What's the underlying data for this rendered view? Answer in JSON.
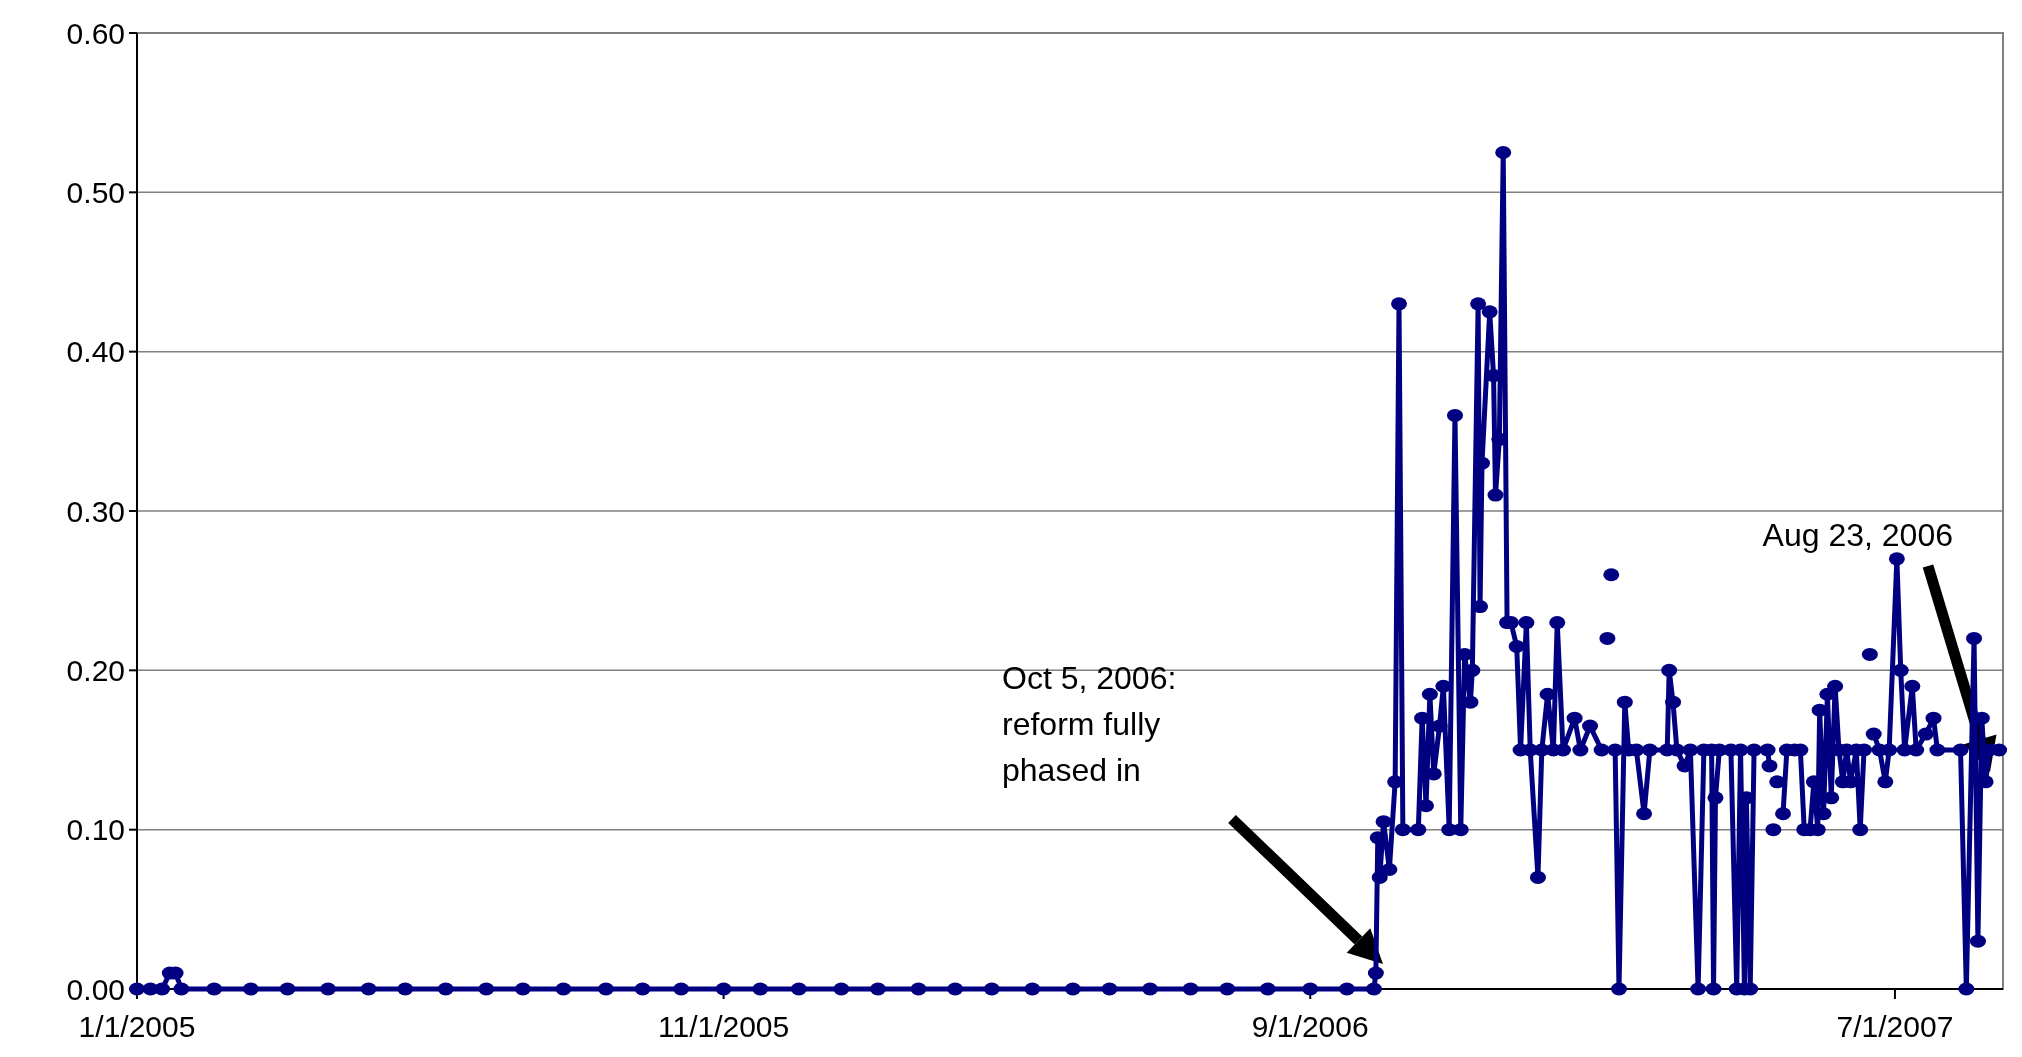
{
  "chart_data": {
    "type": "line",
    "marker": "circle",
    "line_style": "solid",
    "grid": "y",
    "xlim": [
      "2005-01-01",
      "2007-08-26"
    ],
    "xticks": [
      {
        "value": "2005-01-01",
        "label": "1/1/2005"
      },
      {
        "value": "2005-11-01",
        "label": "11/1/2005"
      },
      {
        "value": "2006-09-01",
        "label": "9/1/2006"
      },
      {
        "value": "2007-07-01",
        "label": "7/1/2007"
      }
    ],
    "ylim": [
      0,
      0.6
    ],
    "yticks": [
      {
        "value": 0,
        "label": "0.00"
      },
      {
        "value": 0.1,
        "label": "0.10"
      },
      {
        "value": 0.2,
        "label": "0.20"
      },
      {
        "value": 0.3,
        "label": "0.30"
      },
      {
        "value": 0.4,
        "label": "0.40"
      },
      {
        "value": 0.5,
        "label": "0.50"
      },
      {
        "value": 0.6,
        "label": "0.60"
      }
    ],
    "annotations": [
      "Oct 5, 2006: reform fully phased in",
      "Aug 23, 2006"
    ],
    "series": [
      {
        "color": "#000080",
        "x": [
          "2005-01-01",
          "2005-01-08",
          "2005-01-14",
          "2005-01-18",
          "2005-01-21",
          "2005-01-24",
          "2005-02-10",
          "2005-03-01",
          "2005-03-20",
          "2005-04-10",
          "2005-05-01",
          "2005-05-20",
          "2005-06-10",
          "2005-07-01",
          "2005-07-20",
          "2005-08-10",
          "2005-09-01",
          "2005-09-20",
          "2005-10-10",
          "2005-11-01",
          "2005-11-20",
          "2005-12-10",
          "2006-01-01",
          "2006-01-20",
          "2006-02-10",
          "2006-03-01",
          "2006-03-20",
          "2006-04-10",
          "2006-05-01",
          "2006-05-20",
          "2006-06-10",
          "2006-07-01",
          "2006-07-20",
          "2006-08-10",
          "2006-09-01",
          "2006-09-20",
          "2006-10-04",
          "2006-10-05",
          "2006-10-06",
          "2006-10-07",
          "2006-10-09",
          "2006-10-12",
          "2006-10-15",
          "2006-10-17",
          "2006-10-19",
          "2006-10-27",
          "2006-10-29",
          "2006-10-31",
          "2006-11-02",
          "2006-11-04",
          "2006-11-07",
          "2006-11-09",
          "2006-11-12",
          "2006-11-15",
          "2006-11-18",
          "2006-11-20",
          "2006-11-23",
          "2006-11-24",
          "2006-11-27",
          "2006-11-28",
          "2006-11-29",
          "2006-12-03",
          "2006-12-05",
          "2006-12-06",
          "2006-12-08",
          "2006-12-10",
          "2006-12-12",
          "2006-12-14",
          "2006-12-17",
          "2006-12-19",
          "2006-12-22",
          "2006-12-24",
          "2006-12-28",
          "2006-12-30",
          "2007-01-02",
          "2007-01-05",
          "2007-01-07",
          "2007-01-10",
          "2007-01-16",
          "2007-01-19",
          "2007-01-24",
          "2007-01-30",
          "2007-02-01",
          "2007-02-02",
          "2007-02-03",
          "2007-02-04",
          "2007-02-05",
          "2007-02-06",
          "2007-02-08",
          "2007-02-11",
          "2007-02-13",
          "2007-02-17",
          "2007-02-21",
          "2007-02-24",
          "2007-03-05",
          "2007-03-06",
          "2007-03-08",
          "2007-03-10",
          "2007-03-14",
          "2007-03-17",
          "2007-03-21",
          "2007-03-24",
          "2007-03-28",
          "2007-03-29",
          "2007-03-30",
          "2007-04-01",
          "2007-04-07",
          "2007-04-10",
          "2007-04-12",
          "2007-04-14",
          "2007-04-15",
          "2007-04-17",
          "2007-04-19",
          "2007-04-26",
          "2007-04-27",
          "2007-04-28",
          "2007-04-29",
          "2007-04-30",
          "2007-05-01",
          "2007-05-02",
          "2007-05-04",
          "2007-05-06",
          "2007-05-10",
          "2007-05-13",
          "2007-05-15",
          "2007-05-18",
          "2007-05-20",
          "2007-05-22",
          "2007-05-23",
          "2007-05-25",
          "2007-05-27",
          "2007-05-29",
          "2007-05-31",
          "2007-06-02",
          "2007-06-04",
          "2007-06-06",
          "2007-06-08",
          "2007-06-11",
          "2007-06-13",
          "2007-06-15",
          "2007-06-17",
          "2007-06-18",
          "2007-06-19",
          "2007-06-20",
          "2007-06-23",
          "2007-06-26",
          "2007-06-28",
          "2007-07-02",
          "2007-07-04",
          "2007-07-06",
          "2007-07-10",
          "2007-07-12",
          "2007-07-17",
          "2007-07-21",
          "2007-07-23",
          "2007-08-04",
          "2007-08-07",
          "2007-08-11",
          "2007-08-13",
          "2007-08-15",
          "2007-08-17",
          "2007-08-19",
          "2007-08-24"
        ],
        "values": [
          0,
          0,
          0,
          0.01,
          0.01,
          0,
          0,
          0,
          0,
          0,
          0,
          0,
          0,
          0,
          0,
          0,
          0,
          0,
          0,
          0,
          0,
          0,
          0,
          0,
          0,
          0,
          0,
          0,
          0,
          0,
          0,
          0,
          0,
          0,
          0,
          0,
          0,
          0.01,
          0.095,
          0.07,
          0.105,
          0.075,
          0.13,
          0.43,
          0.1,
          0.1,
          0.17,
          0.115,
          0.185,
          0.135,
          0.165,
          0.19,
          0.1,
          0.36,
          0.1,
          0.21,
          0.18,
          0.2,
          0.43,
          0.24,
          0.33,
          0.425,
          0.385,
          0.31,
          0.345,
          0.525,
          0.23,
          0.23,
          0.215,
          0.15,
          0.23,
          0.15,
          0.07,
          0.15,
          0.185,
          0.15,
          0.23,
          0.15,
          0.17,
          0.15,
          0.165,
          0.15,
          null,
          0.22,
          null,
          0.26,
          null,
          0.15,
          0,
          0.18,
          0.15,
          0.15,
          0.11,
          0.15,
          0.15,
          0.2,
          0.18,
          0.15,
          0.14,
          0.15,
          0,
          0.15,
          0.15,
          0,
          0.12,
          0.15,
          0.15,
          0,
          0.15,
          0,
          0.12,
          0,
          0.15,
          0.15,
          0.14,
          null,
          0.1,
          null,
          0.13,
          null,
          0.11,
          0.15,
          0.15,
          0.15,
          0.1,
          0.1,
          0.13,
          0.1,
          0.175,
          0.11,
          0.185,
          0.12,
          0.19,
          0.15,
          0.13,
          0.15,
          0.13,
          0.15,
          0.1,
          0.15,
          null,
          0.21,
          null,
          0.16,
          0.15,
          0.13,
          0.15,
          0.27,
          0.2,
          0.15,
          0.19,
          0.15,
          0.16,
          0.17,
          0.15,
          0.15,
          0,
          0.22,
          0.03,
          0.17,
          0.13,
          0.15,
          0.15
        ]
      }
    ]
  }
}
